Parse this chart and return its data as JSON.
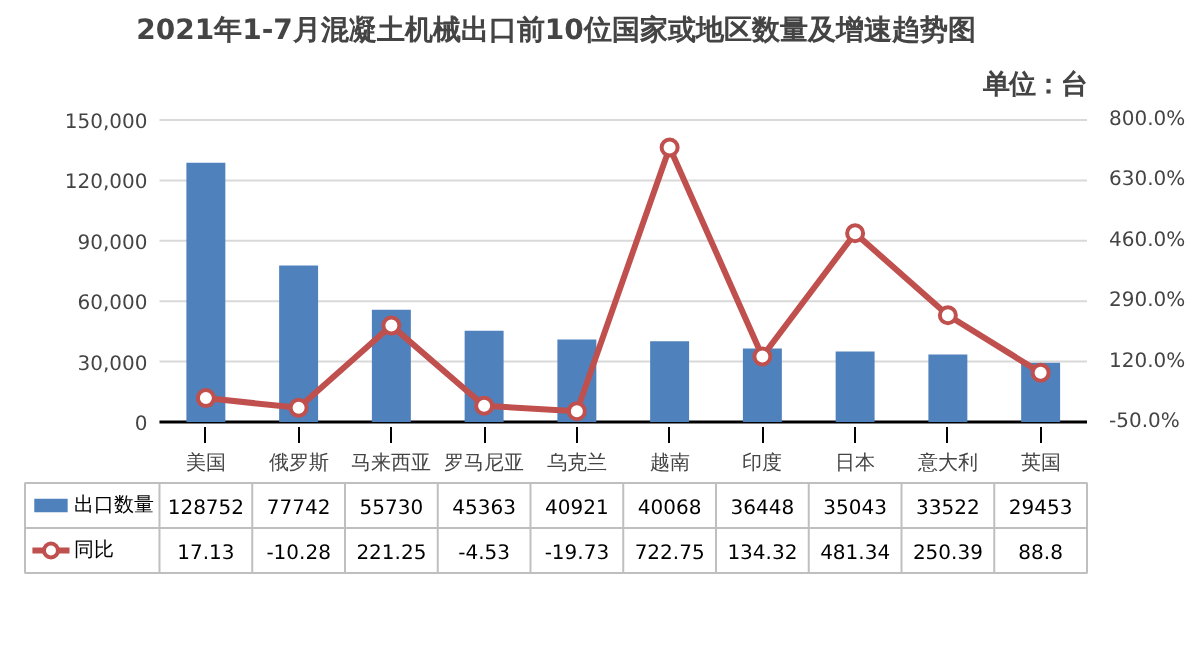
{
  "chart_data": {
    "type": "bar",
    "title": "2021年1-7月混凝土机械出口前10位国家或地区数量及增速趋势图",
    "subtitle": "单位：台",
    "categories": [
      "美国",
      "俄罗斯",
      "马来西亚",
      "罗马尼亚",
      "乌克兰",
      "越南",
      "印度",
      "日本",
      "意大利",
      "英国"
    ],
    "series": [
      {
        "name": "出口数量",
        "color": "#4f81bd",
        "values": [
          128752,
          77742,
          55730,
          45363,
          40921,
          40068,
          36448,
          35043,
          33522,
          29453
        ]
      },
      {
        "name": "同比",
        "type": "line",
        "axis": "y2",
        "color": "#c0504d",
        "marker": "circle",
        "values": [
          17.13,
          -10.28,
          221.25,
          -4.53,
          -19.73,
          722.75,
          134.32,
          481.34,
          250.39,
          88.8
        ],
        "value_labels": [
          "17.13",
          "-10.28",
          "221.25",
          "-4.53",
          "-19.73",
          "722.75",
          "134.32",
          "481.34",
          "250.39",
          "88.8"
        ]
      }
    ],
    "ylim": [
      0,
      150000
    ],
    "yticks": [
      {
        "value": 0,
        "label": "0"
      },
      {
        "value": 30000,
        "label": "30,000"
      },
      {
        "value": 60000,
        "label": "60,000"
      },
      {
        "value": 90000,
        "label": "90,000"
      },
      {
        "value": 120000,
        "label": "120,000"
      },
      {
        "value": 150000,
        "label": "150,000"
      }
    ],
    "y2lim": [
      -50,
      800
    ],
    "y2ticks": [
      {
        "value": -50,
        "label": "-50.0%"
      },
      {
        "value": 120,
        "label": "120.0%"
      },
      {
        "value": 290,
        "label": "290.0%"
      },
      {
        "value": 460,
        "label": "460.0%"
      },
      {
        "value": 630,
        "label": "630.0%"
      },
      {
        "value": 800,
        "label": "800.0%"
      }
    ],
    "grid": "y",
    "legend": "bottom",
    "data_labels": true
  }
}
